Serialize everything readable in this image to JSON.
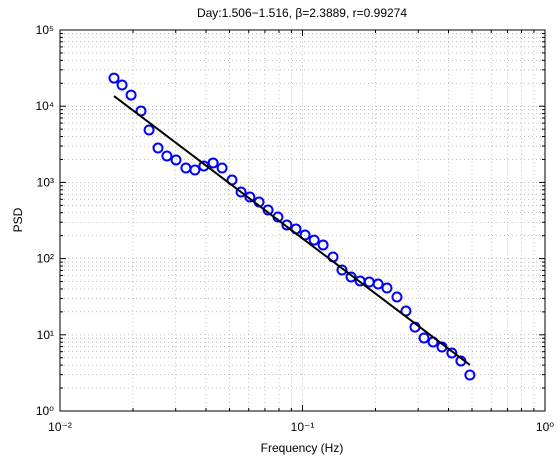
{
  "chart_data": {
    "type": "scatter",
    "title": "Day:1.506−1.516, β=2.3889, r=0.99274",
    "xlabel": "Frequency (Hz)",
    "ylabel": "PSD",
    "xscale": "log",
    "yscale": "log",
    "grid": true,
    "xlim": [
      0.01,
      1
    ],
    "ylim": [
      1,
      100000
    ],
    "xticks": [
      {
        "value": 0.01,
        "label": "10⁻²"
      },
      {
        "value": 0.1,
        "label": "10⁻¹"
      },
      {
        "value": 1,
        "label": "10⁰"
      }
    ],
    "yticks": [
      {
        "value": 1,
        "label": "10⁰"
      },
      {
        "value": 10,
        "label": "10¹"
      },
      {
        "value": 100,
        "label": "10²"
      },
      {
        "value": 1000,
        "label": "10³"
      },
      {
        "value": 10000,
        "label": "10⁴"
      },
      {
        "value": 100000,
        "label": "10⁵"
      }
    ],
    "xminor": [
      0.02,
      0.03,
      0.04,
      0.05,
      0.06,
      0.07,
      0.08,
      0.09,
      0.2,
      0.3,
      0.4,
      0.5,
      0.6,
      0.7,
      0.8,
      0.9
    ],
    "yminor": [
      2,
      3,
      4,
      5,
      6,
      7,
      8,
      9,
      20,
      30,
      40,
      50,
      60,
      70,
      80,
      90,
      200,
      300,
      400,
      500,
      600,
      700,
      800,
      900,
      2000,
      3000,
      4000,
      5000,
      6000,
      7000,
      8000,
      9000,
      20000,
      30000,
      40000,
      50000,
      60000,
      70000,
      80000,
      90000
    ],
    "series": [
      {
        "color": "#0000ff",
        "marker": "circle",
        "x": [
          0.0167,
          0.01803,
          0.01964,
          0.02158,
          0.0233,
          0.02536,
          0.0276,
          0.0301,
          0.03305,
          0.036,
          0.0392,
          0.0428,
          0.0466,
          0.0512,
          0.0558,
          0.0607,
          0.0662,
          0.0721,
          0.0792,
          0.0862,
          0.094,
          0.1025,
          0.1117,
          0.1216,
          0.1336,
          0.1455,
          0.1586,
          0.1728,
          0.1885,
          0.205,
          0.223,
          0.2452,
          0.267,
          0.291,
          0.317,
          0.3455,
          0.376,
          0.413,
          0.45,
          0.49
        ],
        "values": [
          23400,
          18970,
          14000,
          8650,
          4870,
          2830,
          2220,
          1970,
          1545,
          1455,
          1640,
          1800,
          1545,
          1075,
          748,
          643,
          553,
          434,
          351,
          276,
          245,
          204,
          175,
          151,
          105,
          70.8,
          57.4,
          50.9,
          49.3,
          46.4,
          41.1,
          31.3,
          20.5,
          12.6,
          9.07,
          8.05,
          6.92,
          5.77,
          4.53,
          2.97
        ]
      },
      {
        "color": "#000000",
        "marker": "line",
        "x": [
          0.0167,
          0.49
        ],
        "values": [
          13600,
          4.02
        ]
      }
    ]
  }
}
